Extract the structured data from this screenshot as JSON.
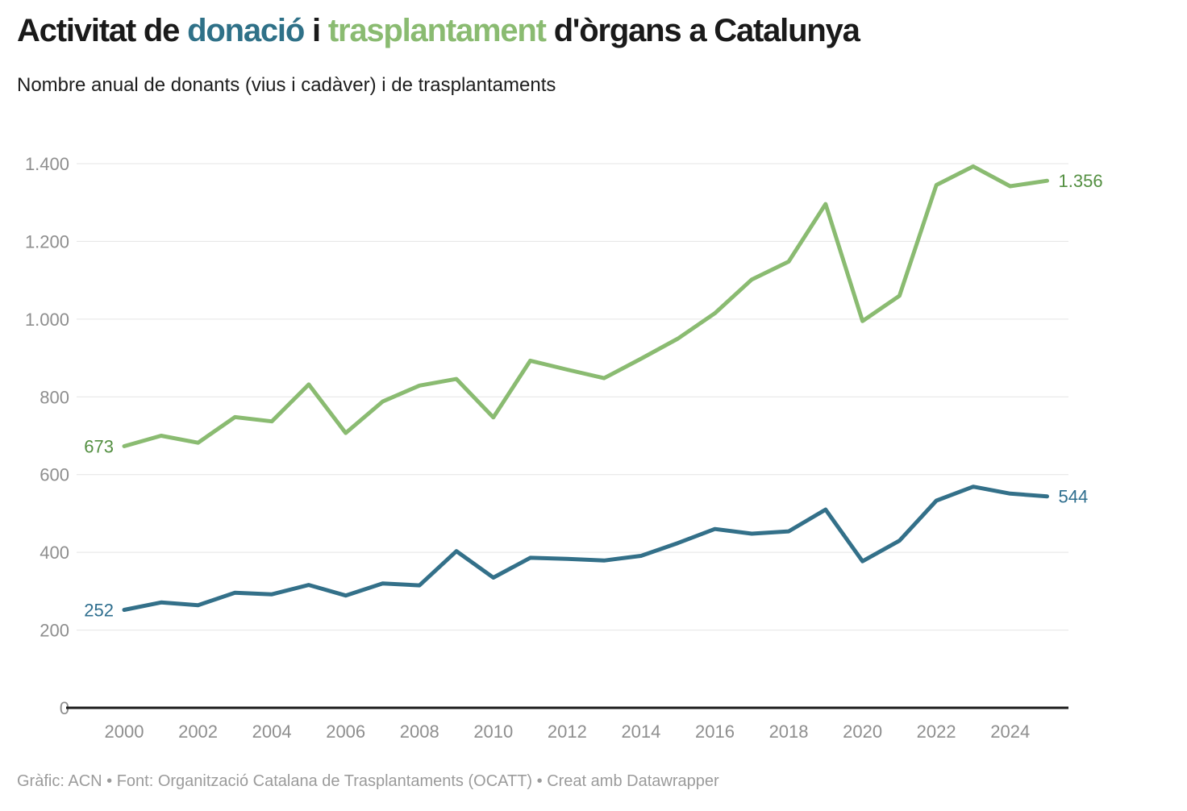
{
  "header": {
    "title_parts": [
      {
        "text": "Activitat de ",
        "color": "#1a1a1a"
      },
      {
        "text": "donació",
        "color": "#2f7188"
      },
      {
        "text": " i ",
        "color": "#1a1a1a"
      },
      {
        "text": "trasplantament",
        "color": "#8abb71"
      },
      {
        "text": " d'òrgans a Catalunya",
        "color": "#1a1a1a"
      }
    ],
    "subtitle": "Nombre anual de donants (vius i cadàver) i de trasplantaments"
  },
  "footer": {
    "text": "Gràfic: ACN • Font: Organització Catalana de Trasplantaments (OCATT) • Creat amb Datawrapper"
  },
  "chart_data": {
    "type": "line",
    "title": "Activitat de donació i trasplantament d'òrgans a Catalunya",
    "subtitle": "Nombre anual de donants (vius i cadàver) i de trasplantaments",
    "x": [
      2000,
      2001,
      2002,
      2003,
      2004,
      2005,
      2006,
      2007,
      2008,
      2009,
      2010,
      2011,
      2012,
      2013,
      2014,
      2015,
      2016,
      2017,
      2018,
      2019,
      2020,
      2021,
      2022,
      2023,
      2024,
      2025
    ],
    "series": [
      {
        "name": "trasplantaments",
        "color": "#8abb71",
        "label_color": "#538f41",
        "start_label": "673",
        "end_label": "1.356",
        "values": [
          673,
          700,
          682,
          748,
          737,
          832,
          707,
          788,
          829,
          846,
          747,
          893,
          870,
          848,
          898,
          950,
          1015,
          1102,
          1148,
          1296,
          995,
          1060,
          1345,
          1393,
          1342,
          1356
        ]
      },
      {
        "name": "donants",
        "color": "#337089",
        "label_color": "#2e6e8e",
        "start_label": "252",
        "end_label": "544",
        "values": [
          252,
          271,
          264,
          296,
          292,
          316,
          289,
          320,
          315,
          403,
          335,
          386,
          383,
          379,
          391,
          424,
          460,
          448,
          454,
          510,
          377,
          430,
          533,
          569,
          551,
          544
        ]
      }
    ],
    "ylim": [
      0,
      1400
    ],
    "yticks": [
      {
        "v": 0,
        "label": "0"
      },
      {
        "v": 200,
        "label": "200"
      },
      {
        "v": 400,
        "label": "400"
      },
      {
        "v": 600,
        "label": "600"
      },
      {
        "v": 800,
        "label": "800"
      },
      {
        "v": 1000,
        "label": "1.000"
      },
      {
        "v": 1200,
        "label": "1.200"
      },
      {
        "v": 1400,
        "label": "1.400"
      }
    ],
    "xticks": [
      {
        "v": 2000,
        "label": "2000"
      },
      {
        "v": 2002,
        "label": "2002"
      },
      {
        "v": 2004,
        "label": "2004"
      },
      {
        "v": 2006,
        "label": "2006"
      },
      {
        "v": 2008,
        "label": "2008"
      },
      {
        "v": 2010,
        "label": "2010"
      },
      {
        "v": 2012,
        "label": "2012"
      },
      {
        "v": 2014,
        "label": "2014"
      },
      {
        "v": 2016,
        "label": "2016"
      },
      {
        "v": 2018,
        "label": "2018"
      },
      {
        "v": 2020,
        "label": "2020"
      },
      {
        "v": 2022,
        "label": "2022"
      },
      {
        "v": 2024,
        "label": "2024"
      }
    ],
    "grid": true,
    "legend_position": "none",
    "grid_color": "#e4e4e4",
    "axis_color": "#1a1a1a",
    "tick_label_color": "#8e8e8e"
  }
}
